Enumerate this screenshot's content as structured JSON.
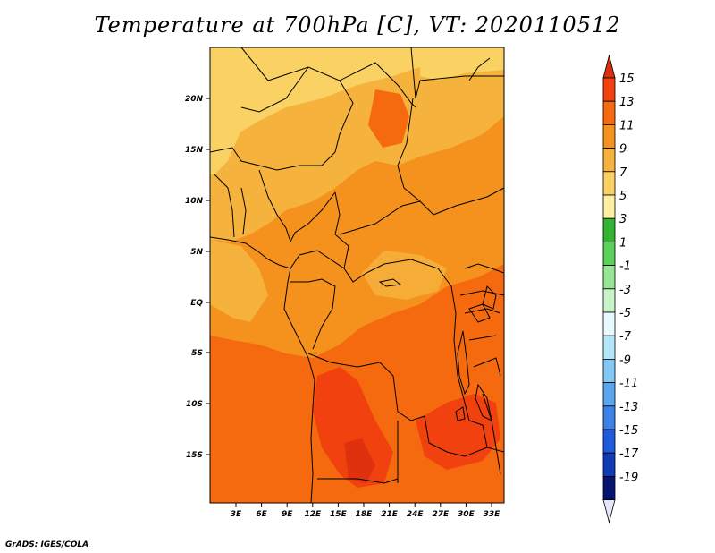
{
  "title": "Temperature at 700hPa [C], VT: 2020110512",
  "credit": "GrADS: IGES/COLA",
  "map": {
    "region": "Central Africa",
    "lat_ticks": [
      "20N",
      "15N",
      "10N",
      "5N",
      "EQ",
      "5S",
      "10S",
      "15S"
    ],
    "lon_ticks": [
      "3E",
      "6E",
      "9E",
      "12E",
      "15E",
      "18E",
      "21E",
      "24E",
      "27E",
      "30E",
      "33E"
    ]
  },
  "colorbar": {
    "labels": [
      "15",
      "13",
      "11",
      "9",
      "7",
      "5",
      "3",
      "1",
      "-1",
      "-3",
      "-5",
      "-7",
      "-9",
      "-11",
      "-13",
      "-15",
      "-17",
      "-19"
    ],
    "colors_top_to_bottom": [
      "#dc2d0f",
      "#f0410f",
      "#f56a0f",
      "#f5921e",
      "#f5b23c",
      "#fad264",
      "#fdf0a0",
      "#32b432",
      "#5ad25a",
      "#96e696",
      "#c8f5c8",
      "#e6faff",
      "#b4e6fa",
      "#82c8f5",
      "#5aa5f0",
      "#3c82e6",
      "#1e5adc",
      "#0f3cb4",
      "#05146e"
    ],
    "under_color": "#e6e6fa"
  }
}
